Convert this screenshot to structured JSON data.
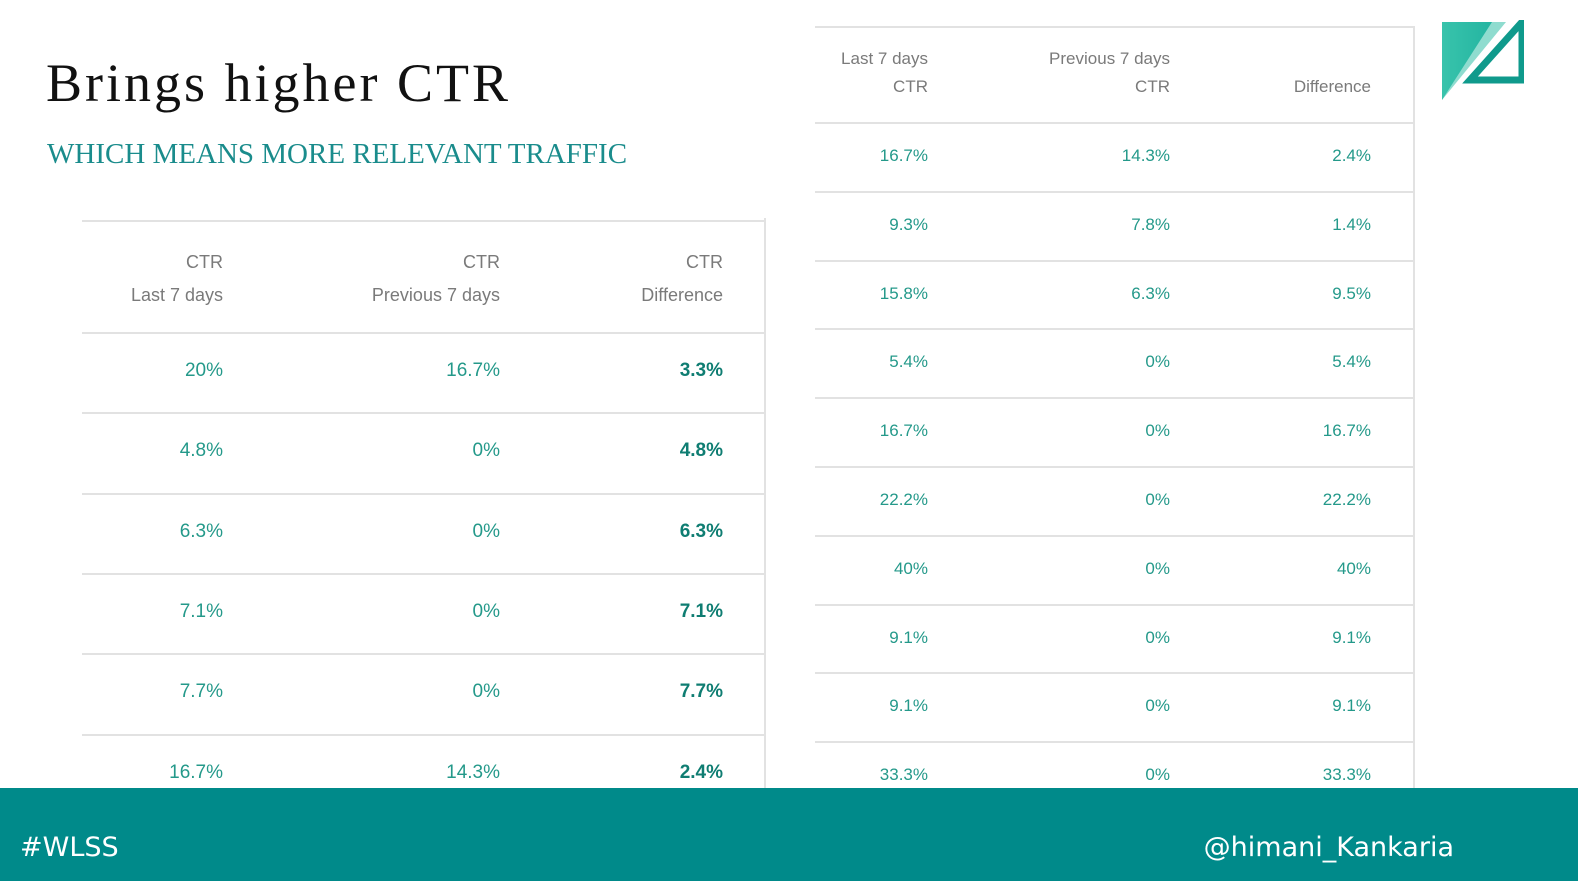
{
  "slide": {
    "title": "Brings higher CTR",
    "subtitle": "WHICH MEANS MORE RELEVANT TRAFFIC"
  },
  "footer": {
    "hashtag": "#WLSS",
    "handle": "@himani_Kankaria",
    "color": "#008a8a"
  },
  "left_table": {
    "headers": [
      {
        "line1": "CTR",
        "line2": "Last 7 days"
      },
      {
        "line1": "CTR",
        "line2": "Previous 7 days"
      },
      {
        "line1": "CTR",
        "line2": "Difference"
      }
    ],
    "rows": [
      [
        "20%",
        "16.7%",
        "3.3%"
      ],
      [
        "4.8%",
        "0%",
        "4.8%"
      ],
      [
        "6.3%",
        "0%",
        "6.3%"
      ],
      [
        "7.1%",
        "0%",
        "7.1%"
      ],
      [
        "7.7%",
        "0%",
        "7.7%"
      ],
      [
        "16.7%",
        "14.3%",
        "2.4%"
      ]
    ]
  },
  "right_table": {
    "headers": [
      {
        "line1": "Last 7 days",
        "line2": "CTR"
      },
      {
        "line1": "Previous 7 days",
        "line2": "CTR"
      },
      {
        "line1": "",
        "line2": "Difference"
      }
    ],
    "rows": [
      [
        "16.7%",
        "14.3%",
        "2.4%"
      ],
      [
        "9.3%",
        "7.8%",
        "1.4%"
      ],
      [
        "15.8%",
        "6.3%",
        "9.5%"
      ],
      [
        "5.4%",
        "0%",
        "5.4%"
      ],
      [
        "16.7%",
        "0%",
        "16.7%"
      ],
      [
        "22.2%",
        "0%",
        "22.2%"
      ],
      [
        "40%",
        "0%",
        "40%"
      ],
      [
        "9.1%",
        "0%",
        "9.1%"
      ],
      [
        "9.1%",
        "0%",
        "9.1%"
      ],
      [
        "33.3%",
        "0%",
        "33.3%"
      ]
    ]
  },
  "colors": {
    "accent": "#1a8c8c",
    "value_text": "#24998a",
    "header_text": "#7a7a7a"
  },
  "logo": {
    "icon": "triangle-logo-icon"
  }
}
